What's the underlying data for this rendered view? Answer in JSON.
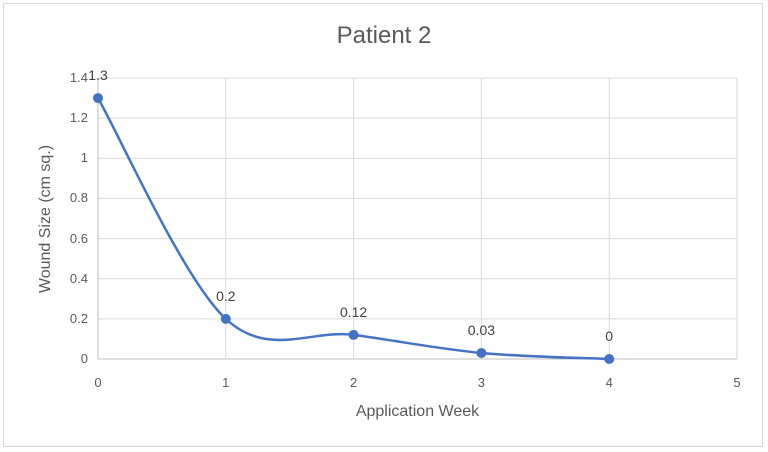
{
  "chart_data": {
    "type": "scatter",
    "subtype": "smooth-line-with-markers",
    "title": "Patient 2",
    "xlabel": "Application Week",
    "ylabel": "Wound Size (cm sq.)",
    "x": [
      0,
      1,
      2,
      3,
      4
    ],
    "series": [
      {
        "name": "Patient 2",
        "values": [
          1.3,
          0.2,
          0.12,
          0.03,
          0
        ],
        "color": "#4472c4"
      }
    ],
    "data_labels": [
      "1.3",
      "0.2",
      "0.12",
      "0.03",
      "0"
    ],
    "xlim": [
      0,
      5
    ],
    "ylim": [
      0,
      1.4
    ],
    "x_ticks": [
      "0",
      "1",
      "2",
      "3",
      "4",
      "5"
    ],
    "y_ticks": [
      "0",
      "0.2",
      "0.4",
      "0.6",
      "0.8",
      "1",
      "1.2",
      "1.4"
    ],
    "grid": true,
    "legend": "none"
  },
  "colors": {
    "line": "#4472c4",
    "grid": "#d9d9d9",
    "text": "#595959"
  }
}
